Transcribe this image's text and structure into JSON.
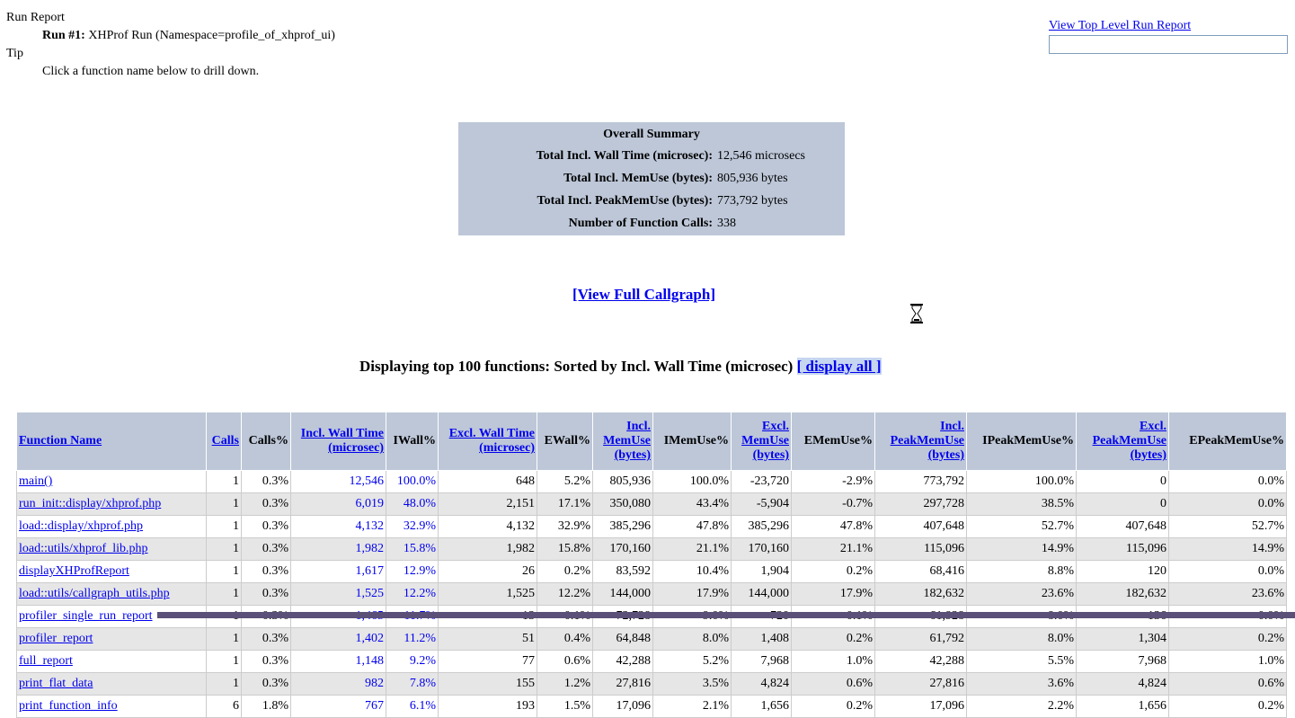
{
  "header": {
    "run_report_label": "Run Report",
    "run_prefix": "Run #1:",
    "run_text": " XHProf Run (Namespace=profile_of_xhprof_ui)",
    "tip_label": "Tip",
    "tip_text": "Click a function name below to drill down."
  },
  "top_link": {
    "label": "View Top Level Run Report"
  },
  "summary": {
    "title": "Overall Summary",
    "rows": [
      {
        "k": "Total Incl. Wall Time (microsec):",
        "v": "12,546 microsecs"
      },
      {
        "k": "Total Incl. MemUse (bytes):",
        "v": "805,936 bytes"
      },
      {
        "k": "Total Incl. PeakMemUse (bytes):",
        "v": "773,792 bytes"
      },
      {
        "k": "Number of Function Calls:",
        "v": "338"
      }
    ]
  },
  "callgraph_link": "[View Full Callgraph]",
  "displaying": {
    "text": "Displaying top 100 functions: Sorted by Incl. Wall Time (microsec) ",
    "link": "[ display all ]"
  },
  "table": {
    "headers": [
      "Function Name",
      "Calls",
      "Calls%",
      "Incl. Wall Time (microsec)",
      "IWall%",
      "Excl. Wall Time (microsec)",
      "EWall%",
      "Incl. MemUse (bytes)",
      "IMemUse%",
      "Excl. MemUse (bytes)",
      "EMemUse%",
      "Incl. PeakMemUse (bytes)",
      "IPeakMemUse%",
      "Excl. PeakMemUse (bytes)",
      "EPeakMemUse%"
    ],
    "rows": [
      [
        "main()",
        "1",
        "0.3%",
        "12,546",
        "100.0%",
        "648",
        "5.2%",
        "805,936",
        "100.0%",
        "-23,720",
        "-2.9%",
        "773,792",
        "100.0%",
        "0",
        "0.0%"
      ],
      [
        "run_init::display/xhprof.php",
        "1",
        "0.3%",
        "6,019",
        "48.0%",
        "2,151",
        "17.1%",
        "350,080",
        "43.4%",
        "-5,904",
        "-0.7%",
        "297,728",
        "38.5%",
        "0",
        "0.0%"
      ],
      [
        "load::display/xhprof.php",
        "1",
        "0.3%",
        "4,132",
        "32.9%",
        "4,132",
        "32.9%",
        "385,296",
        "47.8%",
        "385,296",
        "47.8%",
        "407,648",
        "52.7%",
        "407,648",
        "52.7%"
      ],
      [
        "load::utils/xhprof_lib.php",
        "1",
        "0.3%",
        "1,982",
        "15.8%",
        "1,982",
        "15.8%",
        "170,160",
        "21.1%",
        "170,160",
        "21.1%",
        "115,096",
        "14.9%",
        "115,096",
        "14.9%"
      ],
      [
        "displayXHProfReport",
        "1",
        "0.3%",
        "1,617",
        "12.9%",
        "26",
        "0.2%",
        "83,592",
        "10.4%",
        "1,904",
        "0.2%",
        "68,416",
        "8.8%",
        "120",
        "0.0%"
      ],
      [
        "load::utils/callgraph_utils.php",
        "1",
        "0.3%",
        "1,525",
        "12.2%",
        "1,525",
        "12.2%",
        "144,000",
        "17.9%",
        "144,000",
        "17.9%",
        "182,632",
        "23.6%",
        "182,632",
        "23.6%"
      ],
      [
        "profiler_single_run_report",
        "1",
        "0.3%",
        "1,465",
        "11.7%",
        "13",
        "0.1%",
        "72,728",
        "9.0%",
        "720",
        "0.1%",
        "61,928",
        "8.0%",
        "136",
        "0.0%"
      ],
      [
        "profiler_report",
        "1",
        "0.3%",
        "1,402",
        "11.2%",
        "51",
        "0.4%",
        "64,848",
        "8.0%",
        "1,408",
        "0.2%",
        "61,792",
        "8.0%",
        "1,304",
        "0.2%"
      ],
      [
        "full_report",
        "1",
        "0.3%",
        "1,148",
        "9.2%",
        "77",
        "0.6%",
        "42,288",
        "5.2%",
        "7,968",
        "1.0%",
        "42,288",
        "5.5%",
        "7,968",
        "1.0%"
      ],
      [
        "print_flat_data",
        "1",
        "0.3%",
        "982",
        "7.8%",
        "155",
        "1.2%",
        "27,816",
        "3.5%",
        "4,824",
        "0.6%",
        "27,816",
        "3.6%",
        "4,824",
        "0.6%"
      ],
      [
        "print_function_info",
        "6",
        "1.8%",
        "767",
        "6.1%",
        "193",
        "1.5%",
        "17,096",
        "2.1%",
        "1,656",
        "0.2%",
        "17,096",
        "2.2%",
        "1,656",
        "0.2%"
      ]
    ]
  }
}
